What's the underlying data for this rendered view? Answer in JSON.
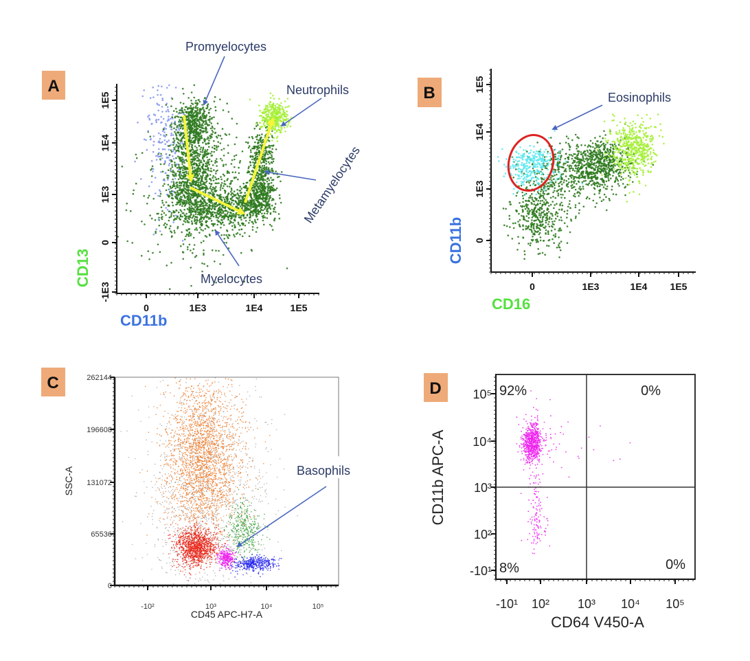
{
  "chart_data": [
    {
      "panel": "A",
      "type": "scatter",
      "xlabel": "CD11b",
      "ylabel": "CD13",
      "xlabel_color": "#3a72e0",
      "ylabel_color": "#55e040",
      "x_ticks": [
        {
          "value": 0,
          "label": "0"
        },
        {
          "value": 1000,
          "label": "1E3"
        },
        {
          "value": 10000,
          "label": "1E4"
        },
        {
          "value": 100000,
          "label": "1E5"
        }
      ],
      "y_ticks": [
        {
          "value": -1000,
          "label": "-1E3"
        },
        {
          "value": 0,
          "label": "0"
        },
        {
          "value": 1000,
          "label": "1E3"
        },
        {
          "value": 10000,
          "label": "1E4"
        },
        {
          "value": 100000,
          "label": "1E5"
        }
      ],
      "scale": "biexponential",
      "annotations": [
        "Promyelocytes",
        "Neutrophils",
        "Metamyelocytes",
        "Myelocytes"
      ],
      "trajectory_arrow_color": "#f5f53a",
      "populations": [
        {
          "color": "#2f7a1f",
          "x": 1000,
          "y": 1000,
          "sx": 0.6,
          "sy": 0.8,
          "n": 500
        },
        {
          "color": "#8899ee",
          "x": 200,
          "y": 10000,
          "sx": 0.2,
          "sy": 0.8,
          "n": 220
        },
        {
          "color": "#2f7a1f",
          "x": 800,
          "y": 30000,
          "sx": 0.18,
          "sy": 0.3,
          "n": 450
        },
        {
          "color": "#2f7a1f",
          "x": 800,
          "y": 4000,
          "sx": 0.22,
          "sy": 0.4,
          "n": 500
        },
        {
          "color": "#2f7a1f",
          "x": 800,
          "y": 800,
          "sx": 0.3,
          "sy": 0.35,
          "n": 400
        },
        {
          "color": "#2f7a1f",
          "x": 3000,
          "y": 500,
          "sx": 0.35,
          "sy": 0.2,
          "n": 500
        },
        {
          "color": "#2f7a1f",
          "x": 15000,
          "y": 3000,
          "sx": 0.15,
          "sy": 0.4,
          "n": 450
        },
        {
          "color": "#2f7a1f",
          "x": 12000,
          "y": 800,
          "sx": 0.2,
          "sy": 0.2,
          "n": 300
        },
        {
          "color": "#a6f03a",
          "x": 28000,
          "y": 40000,
          "sx": 0.16,
          "sy": 0.18,
          "n": 350
        }
      ]
    },
    {
      "panel": "B",
      "type": "scatter",
      "xlabel": "CD16",
      "ylabel": "CD11b",
      "xlabel_color": "#55e040",
      "ylabel_color": "#3a72e0",
      "x_ticks": [
        {
          "value": 0,
          "label": "0"
        },
        {
          "value": 1000,
          "label": "1E3"
        },
        {
          "value": 10000,
          "label": "1E4"
        },
        {
          "value": 100000,
          "label": "1E5"
        }
      ],
      "y_ticks": [
        {
          "value": 0,
          "label": "0"
        },
        {
          "value": 1000,
          "label": "1E3"
        },
        {
          "value": 10000,
          "label": "1E4"
        },
        {
          "value": 100000,
          "label": "1E5"
        }
      ],
      "scale": "biexponential",
      "annotations": [
        "Eosinophils"
      ],
      "gate_color": "#dd2222",
      "populations": [
        {
          "color": "#2f7a1f",
          "x": 50,
          "y": 300,
          "sx": 0.25,
          "sy": 0.35,
          "n": 450
        },
        {
          "color": "#2f7a1f",
          "x": 600,
          "y": 2000,
          "sx": 0.35,
          "sy": 0.25,
          "n": 450
        },
        {
          "color": "#2f7a1f",
          "x": 2000,
          "y": 3000,
          "sx": 0.3,
          "sy": 0.2,
          "n": 450
        },
        {
          "color": "#5ee8f0",
          "x": 0,
          "y": 2600,
          "sx": 0.22,
          "sy": 0.18,
          "n": 300
        },
        {
          "color": "#a6f03a",
          "x": 8000,
          "y": 5000,
          "sx": 0.25,
          "sy": 0.25,
          "n": 500
        }
      ]
    },
    {
      "panel": "C",
      "type": "scatter",
      "xlabel": "CD45 APC-H7-A",
      "ylabel": "SSC-A",
      "x_ticks": [
        {
          "value": -100,
          "label": "-10²"
        },
        {
          "value": 1000,
          "label": "10³"
        },
        {
          "value": 10000,
          "label": "10⁴"
        },
        {
          "value": 100000,
          "label": "10⁵"
        }
      ],
      "y_ticks": [
        {
          "value": 0,
          "label": "0"
        },
        {
          "value": 65536,
          "label": "65536"
        },
        {
          "value": 131072,
          "label": "131072"
        },
        {
          "value": 196608,
          "label": "196608"
        },
        {
          "value": 262144,
          "label": "262144"
        }
      ],
      "x_scale": "biexponential",
      "y_scale": "linear",
      "ylim": [
        0,
        262144
      ],
      "annotations": [
        "Basophils"
      ],
      "populations": [
        {
          "color": "#888888",
          "x": 800,
          "y": 120000,
          "sx": 0.55,
          "sy": 70000,
          "n": 1300
        },
        {
          "color": "#f08030",
          "x": 700,
          "y": 160000,
          "sx": 0.35,
          "sy": 50000,
          "n": 2300
        },
        {
          "color": "#3aa03a",
          "x": 4000,
          "y": 71000,
          "sx": 0.15,
          "sy": 18000,
          "n": 350
        },
        {
          "color": "#e8261a",
          "x": 500,
          "y": 49000,
          "sx": 0.2,
          "sy": 12000,
          "n": 1100
        },
        {
          "color": "#2222ee",
          "x": 6000,
          "y": 27700,
          "sx": 0.2,
          "sy": 5000,
          "n": 400
        },
        {
          "color": "#ee22ee",
          "x": 1900,
          "y": 34600,
          "sx": 0.07,
          "sy": 6000,
          "n": 300
        }
      ]
    },
    {
      "panel": "D",
      "type": "scatter",
      "xlabel": "CD64 V450-A",
      "ylabel": "CD11b APC-A",
      "x_ticks": [
        {
          "value": -10,
          "label": "-10¹"
        },
        {
          "value": 100,
          "label": "10²"
        },
        {
          "value": 1000,
          "label": "10³"
        },
        {
          "value": 10000,
          "label": "10⁴"
        },
        {
          "value": 100000,
          "label": "10⁵"
        }
      ],
      "y_ticks": [
        {
          "value": -10,
          "label": "-10¹"
        },
        {
          "value": 100,
          "label": "10²"
        },
        {
          "value": 1000,
          "label": "10³"
        },
        {
          "value": 10000,
          "label": "10⁴"
        },
        {
          "value": 100000,
          "label": "10⁵"
        }
      ],
      "scale": "biexponential",
      "quadrant_gate": {
        "x": 1000,
        "y": 1000
      },
      "quadrants": {
        "upper_left": "92%",
        "upper_right": "0%",
        "lower_left": "8%",
        "lower_right": "0%"
      },
      "populations": [
        {
          "color": "#ee22ee",
          "x": 40,
          "y": 9000,
          "sx": 0.25,
          "sy": 0.2,
          "n": 700
        },
        {
          "color": "#ee22ee",
          "x": 60,
          "y": 300,
          "sx": 0.2,
          "sy": 0.5,
          "n": 130
        },
        {
          "color": "#ee22ee",
          "x": 200,
          "y": 10000,
          "sx": 0.5,
          "sy": 0.5,
          "n": 40
        }
      ]
    }
  ],
  "panels": {
    "A": {
      "letter": "A",
      "annotations": {
        "promyelocytes": "Promyelocytes",
        "neutrophils": "Neutrophils",
        "metamyelocytes": "Metamyelocytes",
        "myelocytes": "Myelocytes"
      },
      "xlabel": "CD11b",
      "ylabel": "CD13"
    },
    "B": {
      "letter": "B",
      "annotations": {
        "eosinophils": "Eosinophils"
      },
      "xlabel": "CD16",
      "ylabel": "CD11b"
    },
    "C": {
      "letter": "C",
      "annotations": {
        "basophils": "Basophils"
      },
      "xlabel": "CD45 APC-H7-A",
      "ylabel": "SSC-A"
    },
    "D": {
      "letter": "D",
      "xlabel": "CD64 V450-A",
      "ylabel": "CD11b APC-A",
      "q_ul": "92%",
      "q_ur": "0%",
      "q_ll": "8%",
      "q_lr": "0%"
    }
  },
  "colors": {
    "annotation_text": "#2b3a67",
    "annotation_arrow": "#4a66c0",
    "letter_box": "#eeaa78"
  }
}
